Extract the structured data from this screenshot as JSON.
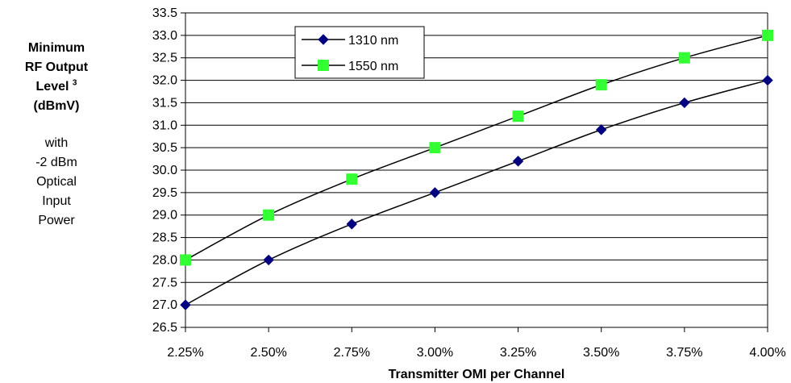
{
  "y_label": {
    "line1": "Minimum",
    "line2": "RF Output",
    "line3": "Level",
    "superscript": "3",
    "line4": "(dBmV)",
    "note": [
      "with",
      "-2 dBm",
      "Optical",
      "Input",
      "Power"
    ]
  },
  "chart_data": {
    "type": "line",
    "title": "",
    "xlabel": "Transmitter OMI per Channel",
    "ylabel": "Minimum RF Output Level 3 (dBmV)",
    "x": [
      2.25,
      2.5,
      2.75,
      3.0,
      3.25,
      3.5,
      3.75,
      4.0
    ],
    "x_tick_labels": [
      "2.25%",
      "2.50%",
      "2.75%",
      "3.00%",
      "3.25%",
      "3.50%",
      "3.75%",
      "4.00%"
    ],
    "y_ticks": [
      "26.5",
      "27.0",
      "27.5",
      "28.0",
      "28.5",
      "29.0",
      "29.5",
      "30.0",
      "30.5",
      "31.0",
      "31.5",
      "32.0",
      "32.5",
      "33.0",
      "33.5"
    ],
    "xlim": [
      2.25,
      4.0
    ],
    "ylim": [
      26.5,
      33.5
    ],
    "grid": "horizontal",
    "legend_position": "top-left",
    "series": [
      {
        "name": "1310 nm",
        "marker": "diamond",
        "color": "#000080",
        "values": [
          27.0,
          28.0,
          28.8,
          29.5,
          30.2,
          30.9,
          31.5,
          32.0
        ]
      },
      {
        "name": "1550 nm",
        "marker": "square",
        "color": "#33ff33",
        "values": [
          28.0,
          29.0,
          29.8,
          30.5,
          31.2,
          31.9,
          32.5,
          33.0
        ]
      }
    ]
  }
}
